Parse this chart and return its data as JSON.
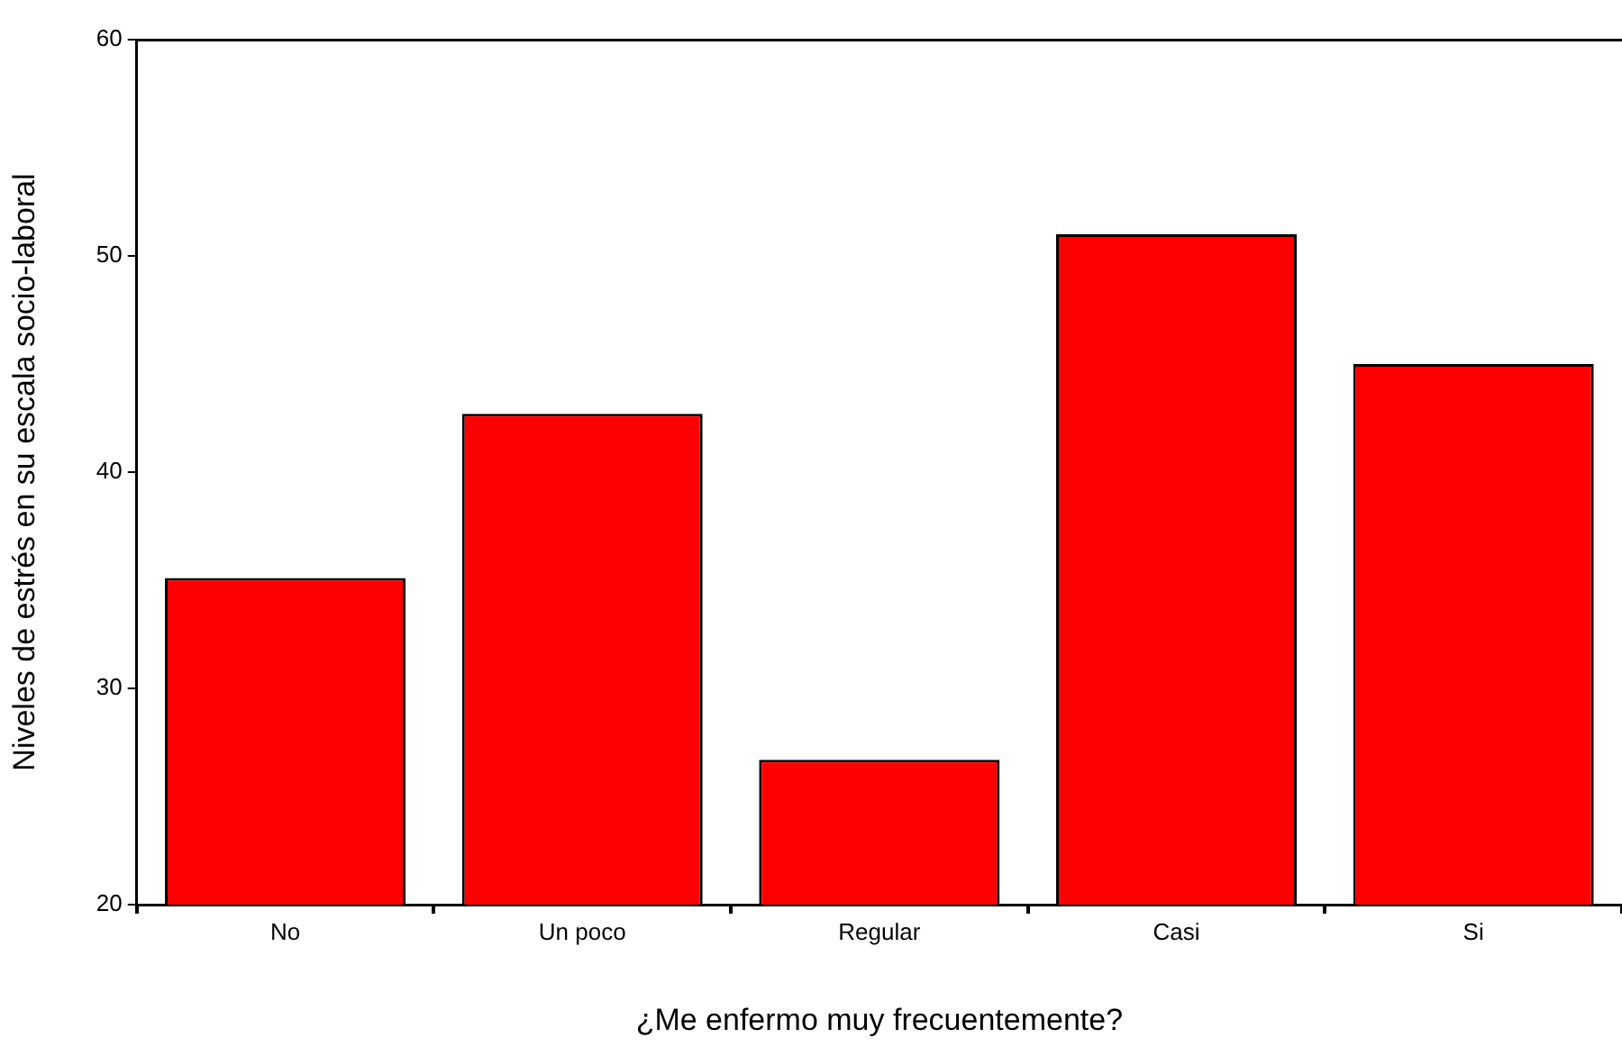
{
  "chart_data": {
    "type": "bar",
    "xlabel": "¿Me enfermo muy frecuentemente?",
    "ylabel": "Niveles de estrés en su escala socio-laboral",
    "categories": [
      "No",
      "Un poco",
      "Regular",
      "Casi",
      "Si"
    ],
    "values": [
      35.1,
      42.7,
      26.7,
      51.0,
      45.0
    ],
    "color": "#ff0000",
    "ylim": [
      20,
      60
    ],
    "yticks": [
      20,
      30,
      40,
      50,
      60
    ],
    "grid": false,
    "legend": false
  }
}
